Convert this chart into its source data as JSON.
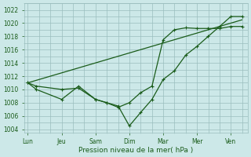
{
  "background_color": "#cce8e8",
  "grid_color": "#9abebe",
  "line_color": "#1a5c1a",
  "marker_color": "#1a5c1a",
  "xlabel": "Pression niveau de la mer( hPa )",
  "xlabel_color": "#1a5c1a",
  "tick_color": "#1a5c1a",
  "ylim": [
    1003.5,
    1023.0
  ],
  "yticks": [
    1004,
    1006,
    1008,
    1010,
    1012,
    1014,
    1016,
    1018,
    1020,
    1022
  ],
  "xtick_labels": [
    "Lun",
    "Jeu",
    "Sam",
    "Dim",
    "Mar",
    "Mer",
    "Ven"
  ],
  "xtick_positions": [
    0,
    1,
    2,
    3,
    4,
    5,
    6
  ],
  "xlim": [
    -0.1,
    6.5
  ],
  "line1_x": [
    0.0,
    0.25,
    1.0,
    1.5,
    2.0,
    2.33,
    2.67,
    3.0,
    3.33,
    3.67,
    4.0,
    4.33,
    4.67,
    5.0,
    5.33,
    5.67,
    6.0,
    6.33
  ],
  "line1_y": [
    1011.0,
    1010.5,
    1010.0,
    1010.2,
    1008.5,
    1008.0,
    1007.3,
    1008.0,
    1009.5,
    1010.5,
    1017.5,
    1019.0,
    1019.3,
    1019.2,
    1019.2,
    1019.2,
    1019.5,
    1019.5
  ],
  "line2_x": [
    0.0,
    0.25,
    1.0,
    1.5,
    2.0,
    2.33,
    2.67,
    3.0,
    3.33,
    3.67,
    4.0,
    4.33,
    4.67,
    5.0,
    5.33,
    5.67,
    6.0,
    6.33
  ],
  "line2_y": [
    1011.0,
    1010.0,
    1008.5,
    1010.5,
    1008.5,
    1008.0,
    1007.5,
    1004.5,
    1006.5,
    1008.5,
    1011.5,
    1012.8,
    1015.2,
    1016.5,
    1018.0,
    1019.5,
    1021.0,
    1021.0
  ],
  "line3_x": [
    0.0,
    6.33
  ],
  "line3_y": [
    1011.0,
    1020.5
  ]
}
